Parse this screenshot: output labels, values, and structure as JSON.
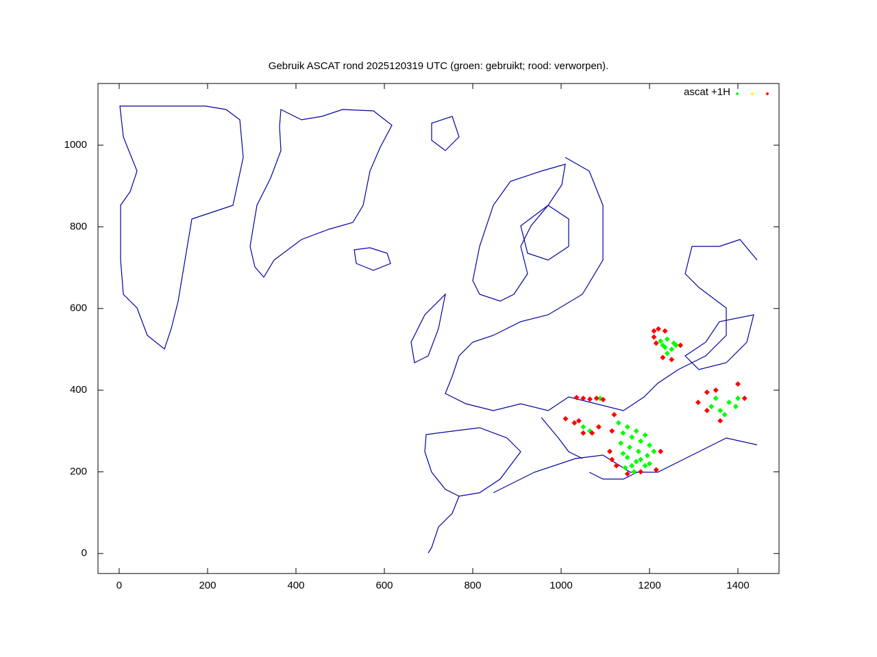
{
  "chart_data": {
    "type": "scatter",
    "title": "Gebruik ASCAT rond 2025120319 UTC (groen: gebruikt; rood: verworpen).",
    "xlim": [
      -48,
      1493
    ],
    "ylim": [
      -49,
      1151
    ],
    "xticks": [
      0,
      200,
      400,
      600,
      800,
      1000,
      1200,
      1400
    ],
    "yticks": [
      0,
      200,
      400,
      600,
      800,
      1000
    ],
    "series": [
      {
        "name": "ascat +1H",
        "color": "#00ff00",
        "x": [
          1225,
          1240,
          1255,
          1235,
          1250,
          1240,
          1230,
          1260,
          1130,
          1150,
          1170,
          1190,
          1140,
          1160,
          1180,
          1200,
          1135,
          1155,
          1175,
          1195,
          1210,
          1150,
          1170,
          1190,
          1140,
          1160,
          1180,
          1200,
          1145,
          1165,
          1340,
          1360,
          1380,
          1400,
          1370,
          1350,
          1395,
          1050,
          1065,
          1088
        ],
        "values": [
          520,
          525,
          515,
          505,
          500,
          490,
          510,
          510,
          320,
          310,
          300,
          290,
          295,
          285,
          275,
          265,
          270,
          260,
          250,
          240,
          250,
          235,
          225,
          215,
          245,
          215,
          230,
          220,
          210,
          200,
          360,
          350,
          370,
          380,
          340,
          380,
          360,
          310,
          300,
          380
        ]
      },
      {
        "color": "#ffff00",
        "x": [],
        "values": []
      },
      {
        "color": "#ff0000",
        "x": [
          1210,
          1220,
          1235,
          1210,
          1215,
          1230,
          1270,
          1250,
          1120,
          1115,
          1110,
          1125,
          1150,
          1180,
          1215,
          1225,
          1115,
          1310,
          1330,
          1350,
          1400,
          1415,
          1360,
          1330,
          1010,
          1030,
          1050,
          1070,
          1085,
          1040,
          1035,
          1050,
          1065,
          1080,
          1095
        ],
        "values": [
          545,
          550,
          545,
          530,
          515,
          480,
          510,
          475,
          340,
          300,
          250,
          215,
          195,
          200,
          205,
          250,
          230,
          370,
          395,
          400,
          415,
          380,
          325,
          350,
          330,
          320,
          295,
          295,
          310,
          325,
          382,
          380,
          378,
          380,
          377
        ]
      }
    ]
  }
}
